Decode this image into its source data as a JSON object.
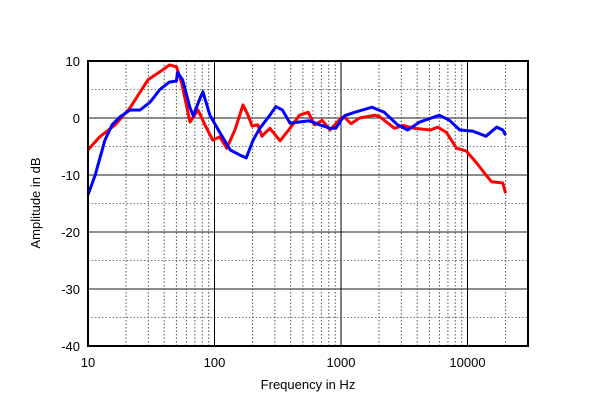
{
  "chart_data": {
    "type": "line",
    "title": "",
    "xlabel": "Frequency in Hz",
    "ylabel": "Amplitude in dB",
    "xscale": "log",
    "xlim": [
      10,
      30000
    ],
    "ylim": [
      -40,
      10
    ],
    "grid": true,
    "x_ticks": [
      10,
      100,
      1000,
      10000
    ],
    "x_tick_labels": [
      "10",
      "100",
      "1000",
      "10000"
    ],
    "y_ticks": [
      10,
      0,
      -10,
      -20,
      -30,
      -40
    ],
    "y_tick_labels": [
      "10",
      "0",
      "-10",
      "-20",
      "-30",
      "-40"
    ],
    "series": [
      {
        "name": "red",
        "color": "#ff0000",
        "points": [
          [
            10,
            -5.6
          ],
          [
            12.4,
            -3.3
          ],
          [
            16.4,
            -1.2
          ],
          [
            21.5,
            1.8
          ],
          [
            29.8,
            6.7
          ],
          [
            37,
            8.1
          ],
          [
            44,
            9.3
          ],
          [
            50,
            9
          ],
          [
            55,
            6.1
          ],
          [
            64,
            -0.7
          ],
          [
            74,
            1.4
          ],
          [
            84,
            -1.2
          ],
          [
            97,
            -3.9
          ],
          [
            110,
            -3.3
          ],
          [
            125,
            -5.3
          ],
          [
            145,
            -2.1
          ],
          [
            168,
            2.3
          ],
          [
            184,
            0.5
          ],
          [
            198,
            -1.4
          ],
          [
            220,
            -1.2
          ],
          [
            237,
            -3.2
          ],
          [
            274,
            -1.8
          ],
          [
            330,
            -4
          ],
          [
            395,
            -1.8
          ],
          [
            470,
            0.5
          ],
          [
            550,
            1
          ],
          [
            620,
            -1.2
          ],
          [
            710,
            -0.4
          ],
          [
            820,
            -2.1
          ],
          [
            1000,
            0
          ],
          [
            1060,
            0.2
          ],
          [
            1200,
            -1
          ],
          [
            1400,
            0
          ],
          [
            1850,
            0.5
          ],
          [
            2000,
            0.3
          ],
          [
            2650,
            -1.8
          ],
          [
            3100,
            -1.3
          ],
          [
            3800,
            -1.8
          ],
          [
            5100,
            -2.1
          ],
          [
            5800,
            -1.6
          ],
          [
            6800,
            -2.5
          ],
          [
            8200,
            -5.3
          ],
          [
            9800,
            -5.8
          ],
          [
            11800,
            -7.9
          ],
          [
            14000,
            -10
          ],
          [
            15500,
            -11.2
          ],
          [
            19000,
            -11.4
          ],
          [
            20000,
            -13.2
          ]
        ]
      },
      {
        "name": "blue",
        "color": "#0000ff",
        "points": [
          [
            10,
            -13.5
          ],
          [
            11.4,
            -10
          ],
          [
            13.6,
            -3.9
          ],
          [
            15.5,
            -1.2
          ],
          [
            17.9,
            0.2
          ],
          [
            21.5,
            1.4
          ],
          [
            25.8,
            1.4
          ],
          [
            31,
            2.8
          ],
          [
            37,
            5
          ],
          [
            44,
            6.3
          ],
          [
            50,
            6.5
          ],
          [
            51,
            8
          ],
          [
            56,
            6.7
          ],
          [
            64,
            1.8
          ],
          [
            68,
            0.4
          ],
          [
            77,
            3.5
          ],
          [
            81,
            4.6
          ],
          [
            92,
            0.5
          ],
          [
            110,
            -2.5
          ],
          [
            133,
            -5.6
          ],
          [
            159,
            -6.5
          ],
          [
            178,
            -7
          ],
          [
            202,
            -3.9
          ],
          [
            228,
            -1.8
          ],
          [
            274,
            0.5
          ],
          [
            305,
            2
          ],
          [
            344,
            1.4
          ],
          [
            395,
            -0.9
          ],
          [
            470,
            -0.7
          ],
          [
            560,
            -0.5
          ],
          [
            680,
            -1.2
          ],
          [
            820,
            -1.8
          ],
          [
            910,
            -1.8
          ],
          [
            1000,
            -0.4
          ],
          [
            1070,
            0.4
          ],
          [
            1280,
            1
          ],
          [
            1760,
            1.9
          ],
          [
            2200,
            1
          ],
          [
            2800,
            -1.2
          ],
          [
            3360,
            -2.1
          ],
          [
            4200,
            -0.7
          ],
          [
            6000,
            0.5
          ],
          [
            7200,
            -0.4
          ],
          [
            8700,
            -2.1
          ],
          [
            11000,
            -2.3
          ],
          [
            14000,
            -3.2
          ],
          [
            17000,
            -1.6
          ],
          [
            19000,
            -2.1
          ],
          [
            20000,
            -3
          ]
        ]
      }
    ]
  }
}
